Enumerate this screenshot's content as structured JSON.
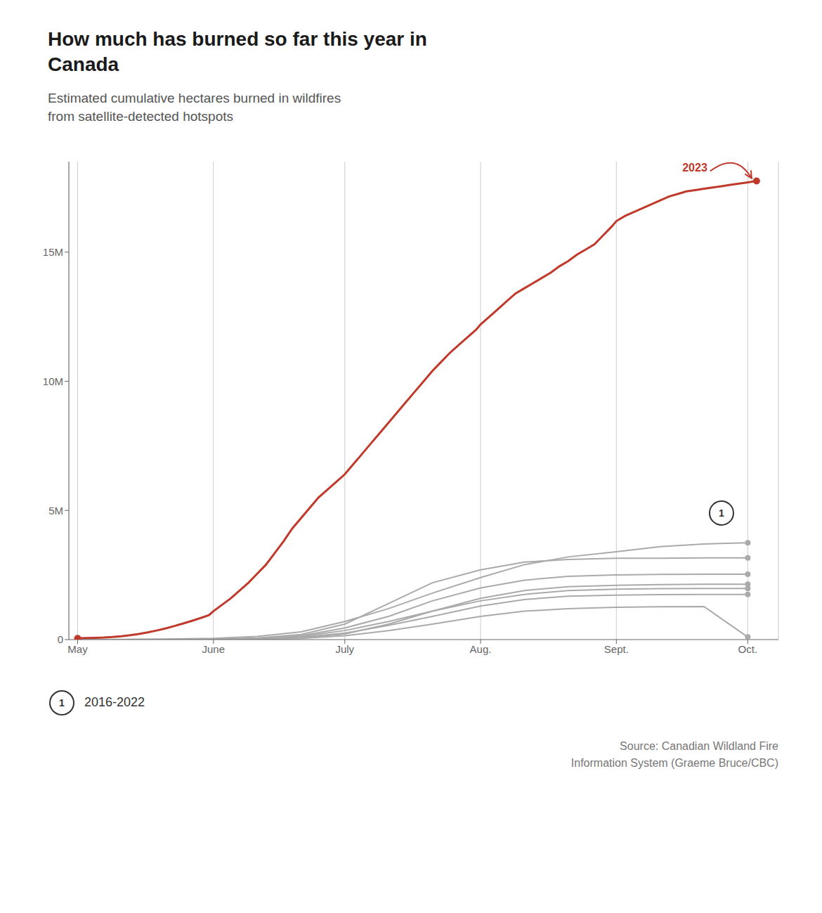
{
  "chart_data": {
    "type": "line",
    "title": "How much has burned so far this year in\nCanada",
    "subtitle": "Estimated cumulative hectares burned in wildfires\nfrom satellite-detected hotspots",
    "source": "Source: Canadian Wildland Fire\nInformation System (Graeme Bruce/CBC)",
    "xlim": [
      -2,
      160
    ],
    "xticks": [
      {
        "value": 0,
        "label": "May"
      },
      {
        "value": 31,
        "label": "June"
      },
      {
        "value": 61,
        "label": "July"
      },
      {
        "value": 92,
        "label": "Aug."
      },
      {
        "value": 123,
        "label": "Sept."
      },
      {
        "value": 153,
        "label": "Oct."
      }
    ],
    "ylim": [
      0,
      18500000
    ],
    "yticks": [
      0,
      {
        "value": 5000000,
        "label": "5M"
      },
      {
        "value": 10000000,
        "label": "10M"
      },
      {
        "value": 15000000,
        "label": "15M"
      }
    ],
    "grid": "x",
    "series": [
      {
        "color": "#aaaaaa",
        "x": [
          0,
          10,
          20,
          31,
          41,
          51,
          61,
          71,
          81,
          92,
          102,
          112,
          123,
          133,
          143,
          153
        ],
        "values": [
          0,
          5000,
          15000,
          50000,
          120000,
          300000,
          700000,
          1200000,
          1800000,
          2400000,
          2900000,
          3200000,
          3400000,
          3600000,
          3700000,
          3750000
        ]
      },
      {
        "color": "#aaaaaa",
        "x": [
          0,
          10,
          20,
          31,
          41,
          51,
          61,
          71,
          81,
          92,
          102,
          112,
          123,
          133,
          143,
          153
        ],
        "values": [
          0,
          3000,
          8000,
          20000,
          60000,
          200000,
          600000,
          1400000,
          2200000,
          2700000,
          3000000,
          3100000,
          3150000,
          3150000,
          3160000,
          3160000
        ]
      },
      {
        "color": "#aaaaaa",
        "x": [
          0,
          10,
          20,
          31,
          41,
          51,
          61,
          71,
          81,
          92,
          102,
          112,
          123,
          133,
          143,
          153
        ],
        "values": [
          0,
          2000,
          5000,
          15000,
          40000,
          150000,
          450000,
          900000,
          1500000,
          2000000,
          2300000,
          2450000,
          2500000,
          2520000,
          2530000,
          2530000
        ]
      },
      {
        "color": "#aaaaaa",
        "x": [
          0,
          10,
          20,
          31,
          41,
          51,
          61,
          71,
          81,
          92,
          102,
          112,
          123,
          133,
          143,
          153
        ],
        "values": [
          0,
          1000,
          4000,
          12000,
          35000,
          120000,
          350000,
          700000,
          1100000,
          1600000,
          1900000,
          2050000,
          2100000,
          2130000,
          2140000,
          2140000
        ]
      },
      {
        "color": "#aaaaaa",
        "x": [
          0,
          10,
          20,
          31,
          41,
          51,
          61,
          71,
          81,
          92,
          102,
          112,
          123,
          133,
          143,
          153
        ],
        "values": [
          0,
          500,
          2000,
          8000,
          25000,
          90000,
          250000,
          550000,
          900000,
          1300000,
          1550000,
          1680000,
          1720000,
          1740000,
          1750000,
          1750000
        ]
      },
      {
        "color": "#aaaaaa",
        "x": [
          0,
          10,
          20,
          31,
          41,
          51,
          61,
          71,
          81,
          92,
          102,
          112,
          123,
          133,
          143,
          153
        ],
        "values": [
          0,
          500,
          2000,
          7000,
          20000,
          70000,
          220000,
          600000,
          1100000,
          1500000,
          1750000,
          1900000,
          1950000,
          1970000,
          1980000,
          1980000
        ]
      },
      {
        "color": "#aaaaaa",
        "x": [
          0,
          10,
          20,
          31,
          41,
          51,
          61,
          71,
          81,
          92,
          102,
          112,
          123,
          133,
          143,
          153
        ],
        "values": [
          0,
          200,
          1000,
          4000,
          15000,
          50000,
          150000,
          350000,
          600000,
          900000,
          1100000,
          1200000,
          1250000,
          1270000,
          1280000,
          100000
        ]
      },
      {
        "color": "#c0392b",
        "x": [
          0,
          2,
          4,
          6,
          8,
          10,
          12,
          14,
          16,
          18,
          20,
          22,
          24,
          26,
          28,
          30,
          31,
          33,
          35,
          37,
          39,
          41,
          43,
          45,
          47,
          49,
          51,
          53,
          55,
          57,
          59,
          61,
          63,
          65,
          67,
          69,
          71,
          73,
          75,
          77,
          79,
          81,
          83,
          85,
          87,
          89,
          91,
          92,
          94,
          96,
          98,
          100,
          102,
          104,
          106,
          108,
          110,
          112,
          114,
          116,
          118,
          120,
          122,
          123,
          125,
          127,
          129,
          131,
          133,
          135,
          137,
          139,
          141,
          143,
          145,
          147,
          149,
          151,
          153,
          155
        ],
        "values": [
          50000,
          60000,
          70000,
          80000,
          100000,
          130000,
          170000,
          220000,
          280000,
          350000,
          430000,
          520000,
          620000,
          720000,
          830000,
          950000,
          1100000,
          1350000,
          1600000,
          1900000,
          2200000,
          2550000,
          2900000,
          3350000,
          3800000,
          4300000,
          4700000,
          5100000,
          5500000,
          5800000,
          6100000,
          6400000,
          6800000,
          7200000,
          7600000,
          8000000,
          8400000,
          8800000,
          9200000,
          9600000,
          10000000,
          10400000,
          10750000,
          11100000,
          11400000,
          11700000,
          12000000,
          12200000,
          12500000,
          12800000,
          13100000,
          13400000,
          13600000,
          13800000,
          14000000,
          14200000,
          14450000,
          14650000,
          14900000,
          15100000,
          15300000,
          15650000,
          16000000,
          16200000,
          16400000,
          16550000,
          16700000,
          16850000,
          17000000,
          17150000,
          17250000,
          17350000,
          17400000,
          17450000,
          17500000,
          17550000,
          17600000,
          17650000,
          17700000,
          17750000
        ]
      }
    ],
    "annotations": [
      {
        "text": "2023",
        "x": 155,
        "y": 17750000,
        "color": "#c0392b"
      },
      {
        "text": "1",
        "x": 147,
        "y": 4900000,
        "shape": "circle"
      }
    ],
    "note": {
      "symbol": "1",
      "text": "2016-2022"
    }
  }
}
